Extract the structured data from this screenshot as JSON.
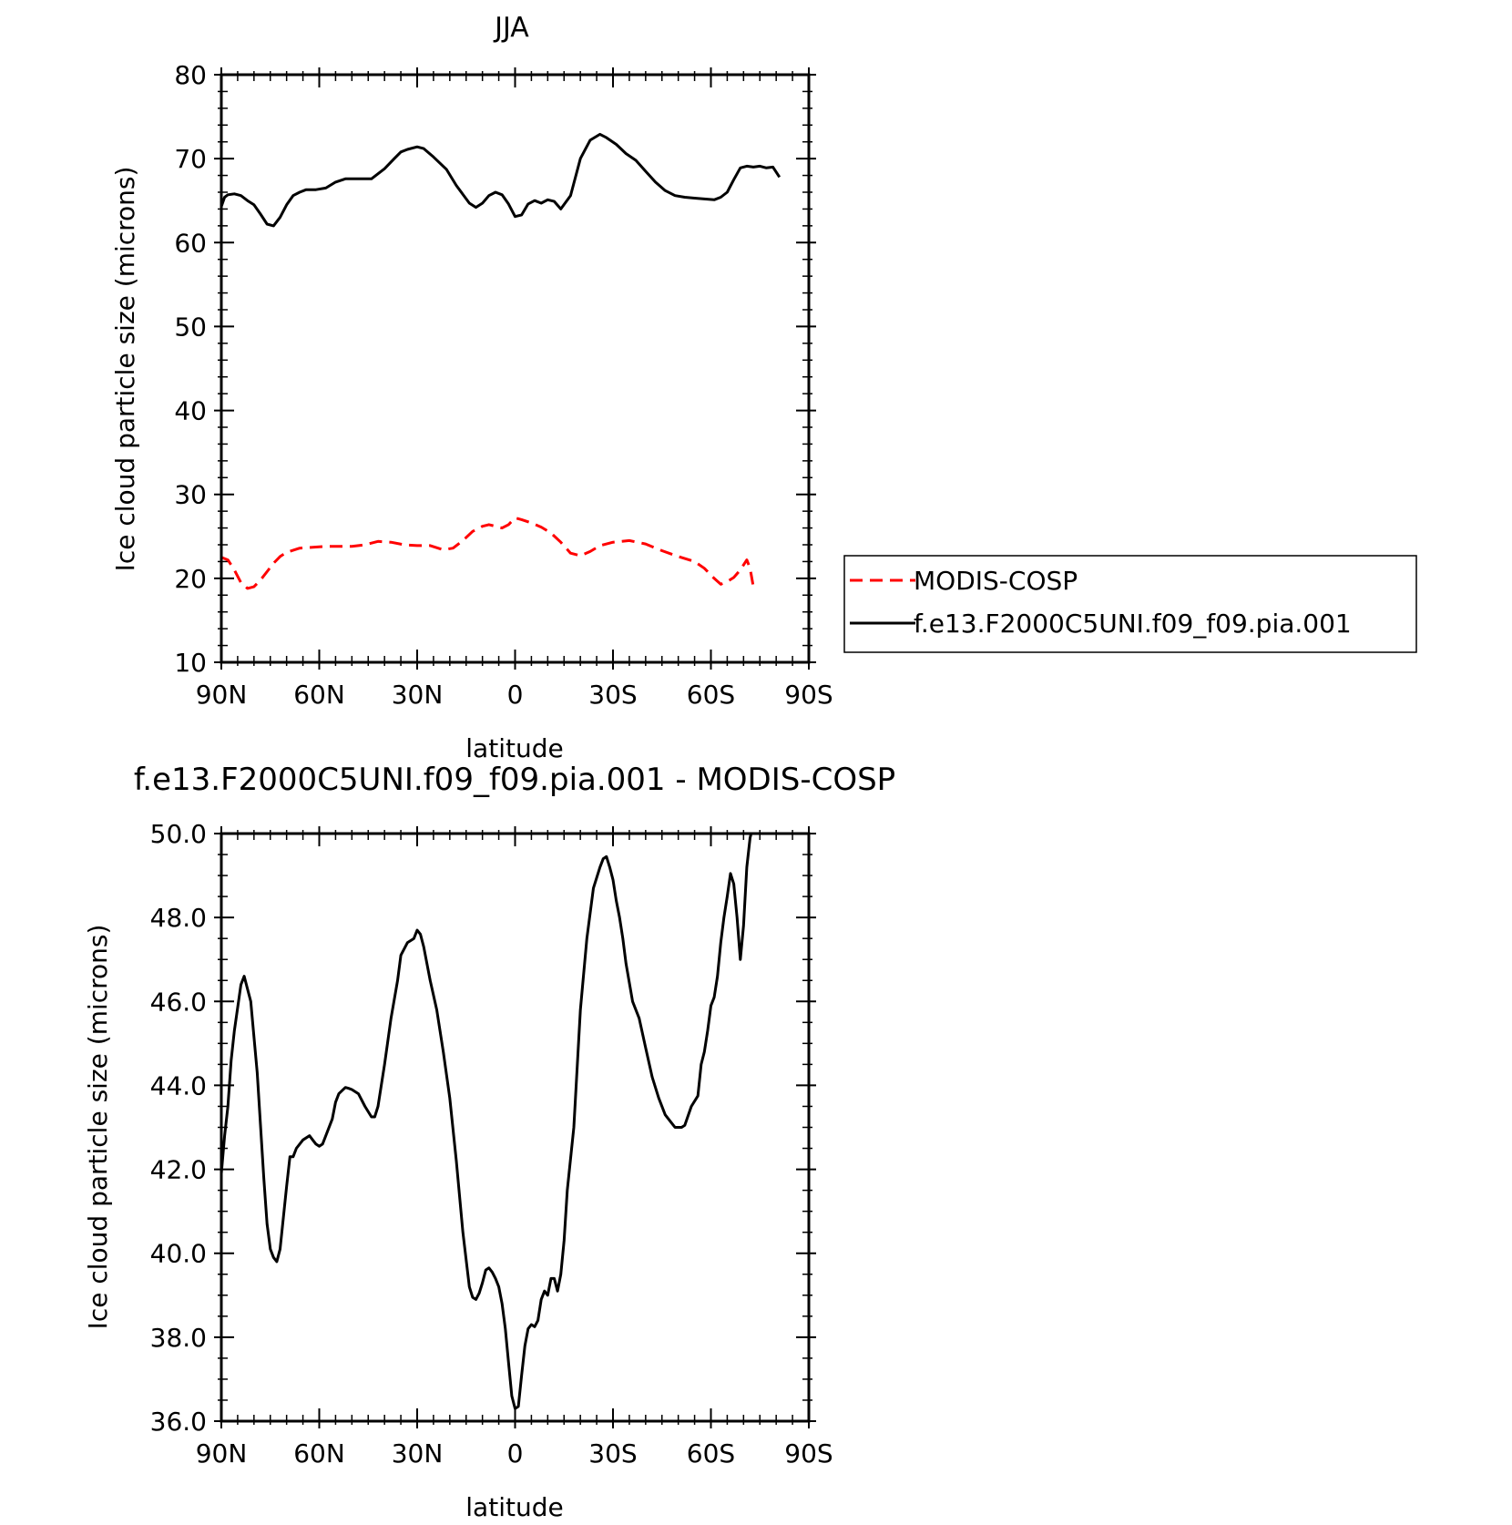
{
  "chart_data": [
    {
      "type": "line",
      "title": "JJA",
      "xlabel": "latitude",
      "ylabel": "Ice cloud particle size (microns)",
      "xlim": [
        90,
        -90
      ],
      "ylim": [
        10,
        80
      ],
      "x_ticks": [
        90,
        60,
        30,
        0,
        -30,
        -60,
        -90
      ],
      "x_tick_labels": [
        "90N",
        "60N",
        "30N",
        "0",
        "30S",
        "60S",
        "90S"
      ],
      "y_ticks": [
        10,
        20,
        30,
        40,
        50,
        60,
        70,
        80
      ],
      "y_tick_labels": [
        "10",
        "20",
        "30",
        "40",
        "50",
        "60",
        "70",
        "80"
      ],
      "legend": {
        "placement": "right",
        "entries": [
          "MODIS-COSP",
          "f.e13.F2000C5UNI.f09_f09.pia.001"
        ]
      },
      "series": [
        {
          "name": "MODIS-COSP",
          "color": "#ff0000",
          "dash": true,
          "x": [
            90,
            88,
            86,
            84,
            82,
            80,
            78,
            76,
            74,
            72,
            70,
            66,
            62,
            58,
            54,
            50,
            46,
            42,
            38,
            34,
            30,
            26,
            22,
            19,
            16,
            13,
            10,
            8,
            6,
            4,
            2,
            0,
            -2,
            -5,
            -8,
            -11,
            -14,
            -17,
            -20,
            -23,
            -26,
            -30,
            -35,
            -40,
            -45,
            -50,
            -55,
            -58,
            -61,
            -63,
            -65,
            -67,
            -69,
            -71,
            -72,
            -73
          ],
          "y": [
            22.5,
            22.2,
            21,
            19.5,
            18.8,
            19,
            19.8,
            20.8,
            21.8,
            22.6,
            23.1,
            23.6,
            23.7,
            23.8,
            23.8,
            23.8,
            24.0,
            24.4,
            24.3,
            24.0,
            23.9,
            23.9,
            23.4,
            23.6,
            24.5,
            25.6,
            26.2,
            26.4,
            26.2,
            26.0,
            26.4,
            27.2,
            27.0,
            26.6,
            26.1,
            25.4,
            24.3,
            23.0,
            22.7,
            23.2,
            23.9,
            24.3,
            24.5,
            24.1,
            23.3,
            22.6,
            22.0,
            21.2,
            20.0,
            19.3,
            19.6,
            20.1,
            21.0,
            22.2,
            21.2,
            19.0
          ]
        },
        {
          "name": "f.e13.F2000C5UNI.f09_f09.pia.001",
          "color": "#000000",
          "dash": false,
          "x": [
            90,
            89,
            88,
            86,
            84,
            82,
            80,
            78,
            76,
            74,
            72,
            70,
            68,
            66,
            64,
            61,
            58,
            55,
            52,
            50,
            47,
            44,
            40,
            37,
            35,
            33,
            30,
            28,
            25,
            21,
            18,
            14,
            12,
            10,
            8,
            6,
            4,
            2,
            0,
            -2,
            -4,
            -6,
            -8,
            -10,
            -12,
            -14,
            -17,
            -20,
            -23,
            -26,
            -28,
            -31,
            -34,
            -37,
            -40,
            -43,
            -46,
            -49,
            -52,
            -55,
            -58,
            -61,
            -63,
            -65,
            -67,
            -69,
            -71,
            -73,
            -75,
            -77,
            -79,
            -81
          ],
          "y": [
            64.3,
            65.4,
            65.7,
            65.8,
            65.6,
            65.0,
            64.5,
            63.4,
            62.2,
            62.0,
            63.0,
            64.5,
            65.6,
            66.0,
            66.3,
            66.3,
            66.5,
            67.2,
            67.6,
            67.6,
            67.6,
            67.6,
            68.8,
            70.0,
            70.8,
            71.1,
            71.4,
            71.2,
            70.2,
            68.7,
            66.8,
            64.7,
            64.2,
            64.7,
            65.6,
            66.0,
            65.7,
            64.6,
            63.1,
            63.3,
            64.6,
            65.0,
            64.7,
            65.1,
            64.9,
            64.0,
            65.6,
            70.0,
            72.2,
            72.9,
            72.5,
            71.7,
            70.6,
            69.8,
            68.5,
            67.2,
            66.2,
            65.6,
            65.4,
            65.3,
            65.2,
            65.1,
            65.4,
            66.0,
            67.5,
            68.9,
            69.1,
            69.0,
            69.1,
            68.9,
            69.0,
            67.8
          ]
        }
      ]
    },
    {
      "type": "line",
      "title": "f.e13.F2000C5UNI.f09_f09.pia.001 - MODIS-COSP",
      "xlabel": "latitude",
      "ylabel": "Ice cloud particle size (microns)",
      "xlim": [
        90,
        -90
      ],
      "ylim": [
        36,
        50
      ],
      "x_ticks": [
        90,
        60,
        30,
        0,
        -30,
        -60,
        -90
      ],
      "x_tick_labels": [
        "90N",
        "60N",
        "30N",
        "0",
        "30S",
        "60S",
        "90S"
      ],
      "y_ticks": [
        36,
        38,
        40,
        42,
        44,
        46,
        48,
        50
      ],
      "y_tick_labels": [
        "36.0",
        "38.0",
        "40.0",
        "42.0",
        "44.0",
        "46.0",
        "48.0",
        "50.0"
      ],
      "series": [
        {
          "color": "#000000",
          "x": [
            90,
            89,
            88,
            87,
            86,
            84,
            83,
            82,
            81,
            79,
            77,
            76,
            75,
            74,
            73,
            72,
            70,
            69,
            68,
            67,
            65,
            63,
            62,
            61,
            60,
            59,
            58,
            56,
            55,
            54,
            52,
            51,
            50,
            48,
            46,
            44,
            43,
            42,
            40,
            38,
            36,
            35,
            33,
            31,
            30,
            29,
            28,
            26,
            24,
            22,
            20,
            18,
            16,
            14,
            13,
            12,
            11,
            10,
            9,
            8,
            7,
            6,
            5,
            4,
            3,
            2,
            1,
            0,
            -1,
            -2,
            -3,
            -4,
            -5,
            -6,
            -7,
            -8,
            -9,
            -10,
            -11,
            -12,
            -13,
            -14,
            -15,
            -16,
            -18,
            -20,
            -22,
            -24,
            -26,
            -27,
            -28,
            -29,
            -30,
            -31,
            -32,
            -33,
            -34,
            -36,
            -38,
            -40,
            -42,
            -44,
            -46,
            -48,
            -49,
            -50,
            -51,
            -52,
            -54,
            -56,
            -57,
            -58,
            -59,
            -60,
            -61,
            -62,
            -63,
            -64,
            -65,
            -66,
            -67,
            -68,
            -69,
            -70,
            -71,
            -72,
            -73
          ],
          "y": [
            41.9,
            42.8,
            43.5,
            44.6,
            45.3,
            46.4,
            46.6,
            46.3,
            46.0,
            44.3,
            41.8,
            40.7,
            40.1,
            39.9,
            39.8,
            40.1,
            41.6,
            42.3,
            42.3,
            42.5,
            42.7,
            42.8,
            42.7,
            42.6,
            42.55,
            42.6,
            42.8,
            43.2,
            43.6,
            43.8,
            43.95,
            43.93,
            43.9,
            43.8,
            43.5,
            43.25,
            43.25,
            43.5,
            44.5,
            45.6,
            46.5,
            47.1,
            47.4,
            47.5,
            47.7,
            47.6,
            47.3,
            46.5,
            45.8,
            44.8,
            43.7,
            42.2,
            40.5,
            39.2,
            38.95,
            38.9,
            39.05,
            39.3,
            39.6,
            39.65,
            39.55,
            39.4,
            39.2,
            38.8,
            38.2,
            37.4,
            36.6,
            36.3,
            36.35,
            37.1,
            37.8,
            38.2,
            38.3,
            38.25,
            38.4,
            38.9,
            39.1,
            39.0,
            39.4,
            39.4,
            39.1,
            39.5,
            40.3,
            41.5,
            43.0,
            45.8,
            47.5,
            48.7,
            49.2,
            49.4,
            49.45,
            49.2,
            48.9,
            48.4,
            48.0,
            47.5,
            46.9,
            46.0,
            45.6,
            44.9,
            44.2,
            43.7,
            43.3,
            43.1,
            43.0,
            43.0,
            43.0,
            43.05,
            43.5,
            43.75,
            44.5,
            44.8,
            45.3,
            45.9,
            46.1,
            46.6,
            47.4,
            48.0,
            48.5,
            49.05,
            48.8,
            48.0,
            47.0,
            47.8,
            49.2,
            49.9,
            50.2
          ]
        }
      ]
    }
  ]
}
